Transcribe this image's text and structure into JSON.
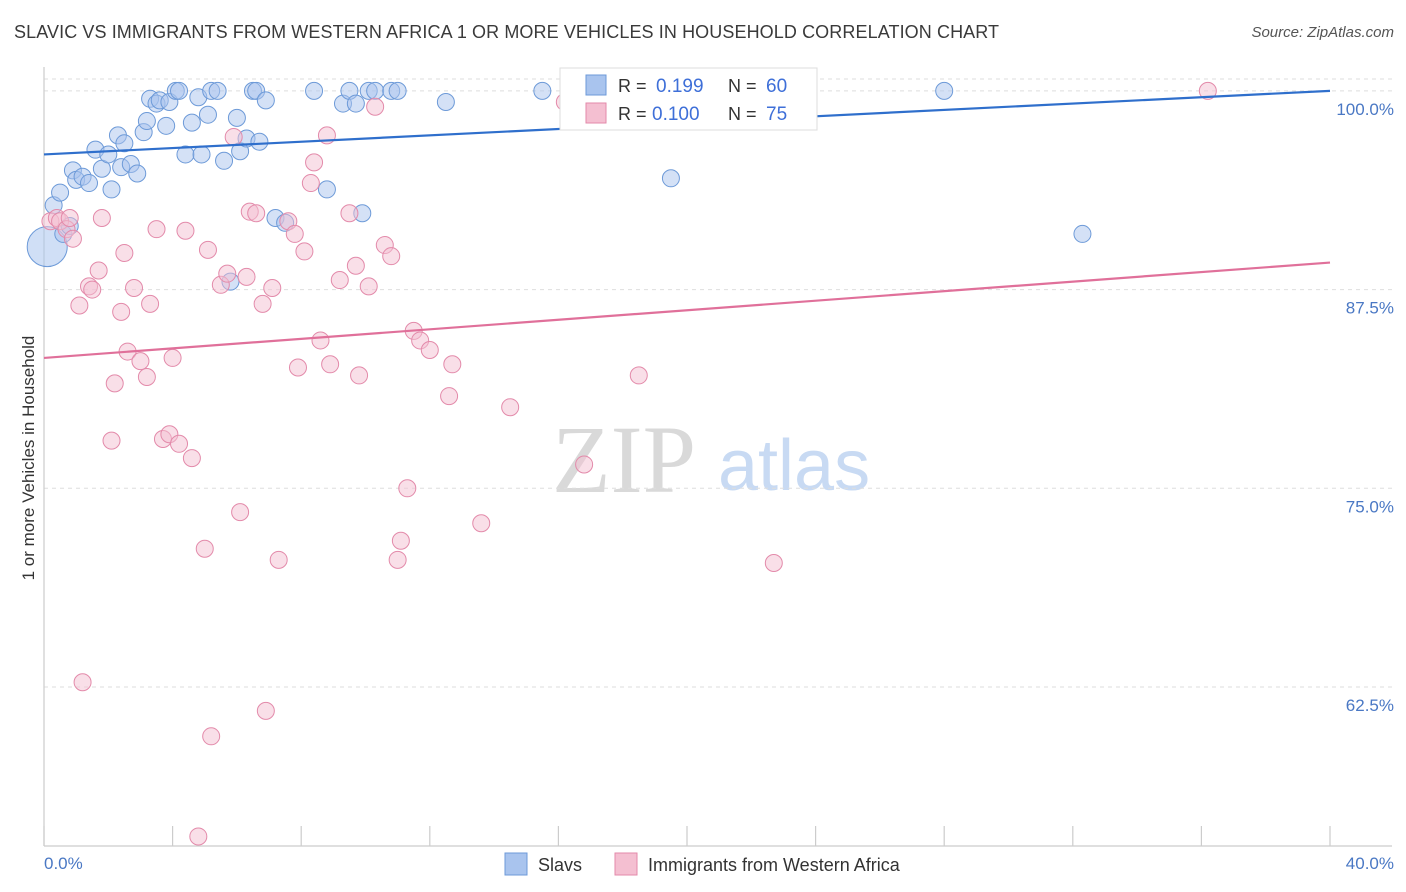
{
  "header": {
    "title": "SLAVIC VS IMMIGRANTS FROM WESTERN AFRICA 1 OR MORE VEHICLES IN HOUSEHOLD CORRELATION CHART",
    "source": "Source: ZipAtlas.com"
  },
  "watermark": {
    "zip": "ZIP",
    "atlas": "atlas"
  },
  "chart_data": {
    "type": "scatter",
    "title": "SLAVIC VS IMMIGRANTS FROM WESTERN AFRICA 1 OR MORE VEHICLES IN HOUSEHOLD CORRELATION CHART",
    "xlabel": "",
    "ylabel": "1 or more Vehicles in Household",
    "xlim": [
      0,
      40
    ],
    "ylim": [
      52.5,
      101.5
    ],
    "x_tick_labels": [
      "0.0%",
      "40.0%"
    ],
    "y_ticks": [
      62.5,
      75.0,
      87.5,
      100.0
    ],
    "y_tick_labels": [
      "62.5%",
      "75.0%",
      "87.5%",
      "100.0%"
    ],
    "grid": true,
    "legend_position": "top-center",
    "series": [
      {
        "name": "Slavs",
        "color": "#a9c4ee",
        "stroke": "#6d9ad8",
        "line_color": "#2f6fcc",
        "R": "0.199",
        "N": "60",
        "trend": {
          "x": [
            0,
            40
          ],
          "y": [
            96.0,
            100.0
          ]
        },
        "points": [
          [
            0.1,
            90.2
          ],
          [
            0.3,
            92.8
          ],
          [
            0.5,
            93.6
          ],
          [
            0.6,
            91.0
          ],
          [
            0.8,
            91.5
          ],
          [
            0.9,
            95.0
          ],
          [
            1.0,
            94.4
          ],
          [
            1.2,
            94.6
          ],
          [
            1.4,
            94.2
          ],
          [
            1.6,
            96.3
          ],
          [
            1.8,
            95.1
          ],
          [
            2.0,
            96.0
          ],
          [
            2.1,
            93.8
          ],
          [
            2.3,
            97.2
          ],
          [
            2.4,
            95.2
          ],
          [
            2.5,
            96.7
          ],
          [
            2.7,
            95.4
          ],
          [
            2.9,
            94.8
          ],
          [
            3.1,
            97.4
          ],
          [
            3.2,
            98.1
          ],
          [
            3.3,
            99.5
          ],
          [
            3.5,
            99.2
          ],
          [
            3.6,
            99.4
          ],
          [
            3.8,
            97.8
          ],
          [
            3.9,
            99.3
          ],
          [
            4.1,
            100.0
          ],
          [
            4.2,
            100.0
          ],
          [
            4.4,
            96.0
          ],
          [
            4.6,
            98.0
          ],
          [
            4.8,
            99.6
          ],
          [
            4.9,
            96.0
          ],
          [
            5.1,
            98.5
          ],
          [
            5.2,
            100.0
          ],
          [
            5.4,
            100.0
          ],
          [
            5.6,
            95.6
          ],
          [
            5.8,
            88.0
          ],
          [
            6.0,
            98.3
          ],
          [
            6.1,
            96.2
          ],
          [
            6.3,
            97.0
          ],
          [
            6.5,
            100.0
          ],
          [
            6.6,
            100.0
          ],
          [
            6.7,
            96.8
          ],
          [
            6.9,
            99.4
          ],
          [
            7.2,
            92.0
          ],
          [
            7.5,
            91.7
          ],
          [
            8.4,
            100.0
          ],
          [
            8.8,
            93.8
          ],
          [
            9.3,
            99.2
          ],
          [
            9.5,
            100.0
          ],
          [
            9.7,
            99.2
          ],
          [
            10.1,
            100.0
          ],
          [
            10.3,
            100.0
          ],
          [
            10.8,
            100.0
          ],
          [
            11.0,
            100.0
          ],
          [
            12.5,
            99.3
          ],
          [
            15.5,
            100.0
          ],
          [
            19.5,
            94.5
          ],
          [
            28.0,
            100.0
          ],
          [
            32.3,
            91.0
          ],
          [
            9.9,
            92.3
          ]
        ]
      },
      {
        "name": "Immigrants from Western Africa",
        "color": "#f4bfd1",
        "stroke": "#e38aaa",
        "line_color": "#e0709a",
        "R": "0.100",
        "N": "75",
        "trend": {
          "x": [
            0,
            40
          ],
          "y": [
            83.2,
            89.2
          ]
        },
        "points": [
          [
            0.2,
            91.8
          ],
          [
            0.4,
            92.0
          ],
          [
            0.5,
            91.8
          ],
          [
            0.7,
            91.3
          ],
          [
            0.8,
            92.0
          ],
          [
            0.9,
            90.7
          ],
          [
            1.1,
            86.5
          ],
          [
            1.2,
            62.8
          ],
          [
            1.4,
            87.7
          ],
          [
            1.5,
            87.5
          ],
          [
            1.7,
            88.7
          ],
          [
            1.8,
            92.0
          ],
          [
            2.1,
            78.0
          ],
          [
            2.2,
            81.6
          ],
          [
            2.4,
            86.1
          ],
          [
            2.5,
            89.8
          ],
          [
            2.6,
            83.6
          ],
          [
            2.8,
            87.6
          ],
          [
            3.0,
            83.0
          ],
          [
            3.2,
            82.0
          ],
          [
            3.3,
            86.6
          ],
          [
            3.5,
            91.3
          ],
          [
            3.7,
            78.1
          ],
          [
            3.9,
            78.4
          ],
          [
            4.0,
            83.2
          ],
          [
            4.2,
            77.8
          ],
          [
            4.4,
            91.2
          ],
          [
            4.6,
            76.9
          ],
          [
            4.8,
            53.1
          ],
          [
            5.0,
            71.2
          ],
          [
            5.1,
            90.0
          ],
          [
            5.2,
            59.4
          ],
          [
            5.5,
            87.8
          ],
          [
            5.7,
            88.5
          ],
          [
            5.9,
            97.1
          ],
          [
            6.1,
            73.5
          ],
          [
            6.3,
            88.3
          ],
          [
            6.4,
            92.4
          ],
          [
            6.6,
            92.3
          ],
          [
            6.8,
            86.6
          ],
          [
            6.9,
            61.0
          ],
          [
            7.1,
            87.6
          ],
          [
            7.3,
            70.5
          ],
          [
            7.6,
            91.8
          ],
          [
            7.8,
            91.0
          ],
          [
            7.9,
            82.6
          ],
          [
            8.1,
            89.9
          ],
          [
            8.3,
            94.2
          ],
          [
            8.4,
            95.5
          ],
          [
            8.6,
            84.3
          ],
          [
            8.8,
            97.2
          ],
          [
            8.9,
            82.8
          ],
          [
            9.2,
            88.1
          ],
          [
            9.5,
            92.3
          ],
          [
            9.7,
            89.0
          ],
          [
            9.8,
            82.1
          ],
          [
            10.1,
            87.7
          ],
          [
            10.3,
            99.0
          ],
          [
            10.6,
            90.3
          ],
          [
            10.8,
            89.6
          ],
          [
            11.0,
            70.5
          ],
          [
            11.1,
            71.7
          ],
          [
            11.3,
            75.0
          ],
          [
            11.5,
            84.9
          ],
          [
            11.7,
            84.3
          ],
          [
            12.0,
            83.7
          ],
          [
            12.6,
            80.8
          ],
          [
            12.7,
            82.8
          ],
          [
            13.6,
            72.8
          ],
          [
            14.5,
            80.1
          ],
          [
            16.2,
            99.3
          ],
          [
            16.8,
            76.5
          ],
          [
            18.5,
            82.1
          ],
          [
            22.7,
            70.3
          ],
          [
            36.2,
            100.0
          ]
        ]
      }
    ],
    "annotations": []
  }
}
